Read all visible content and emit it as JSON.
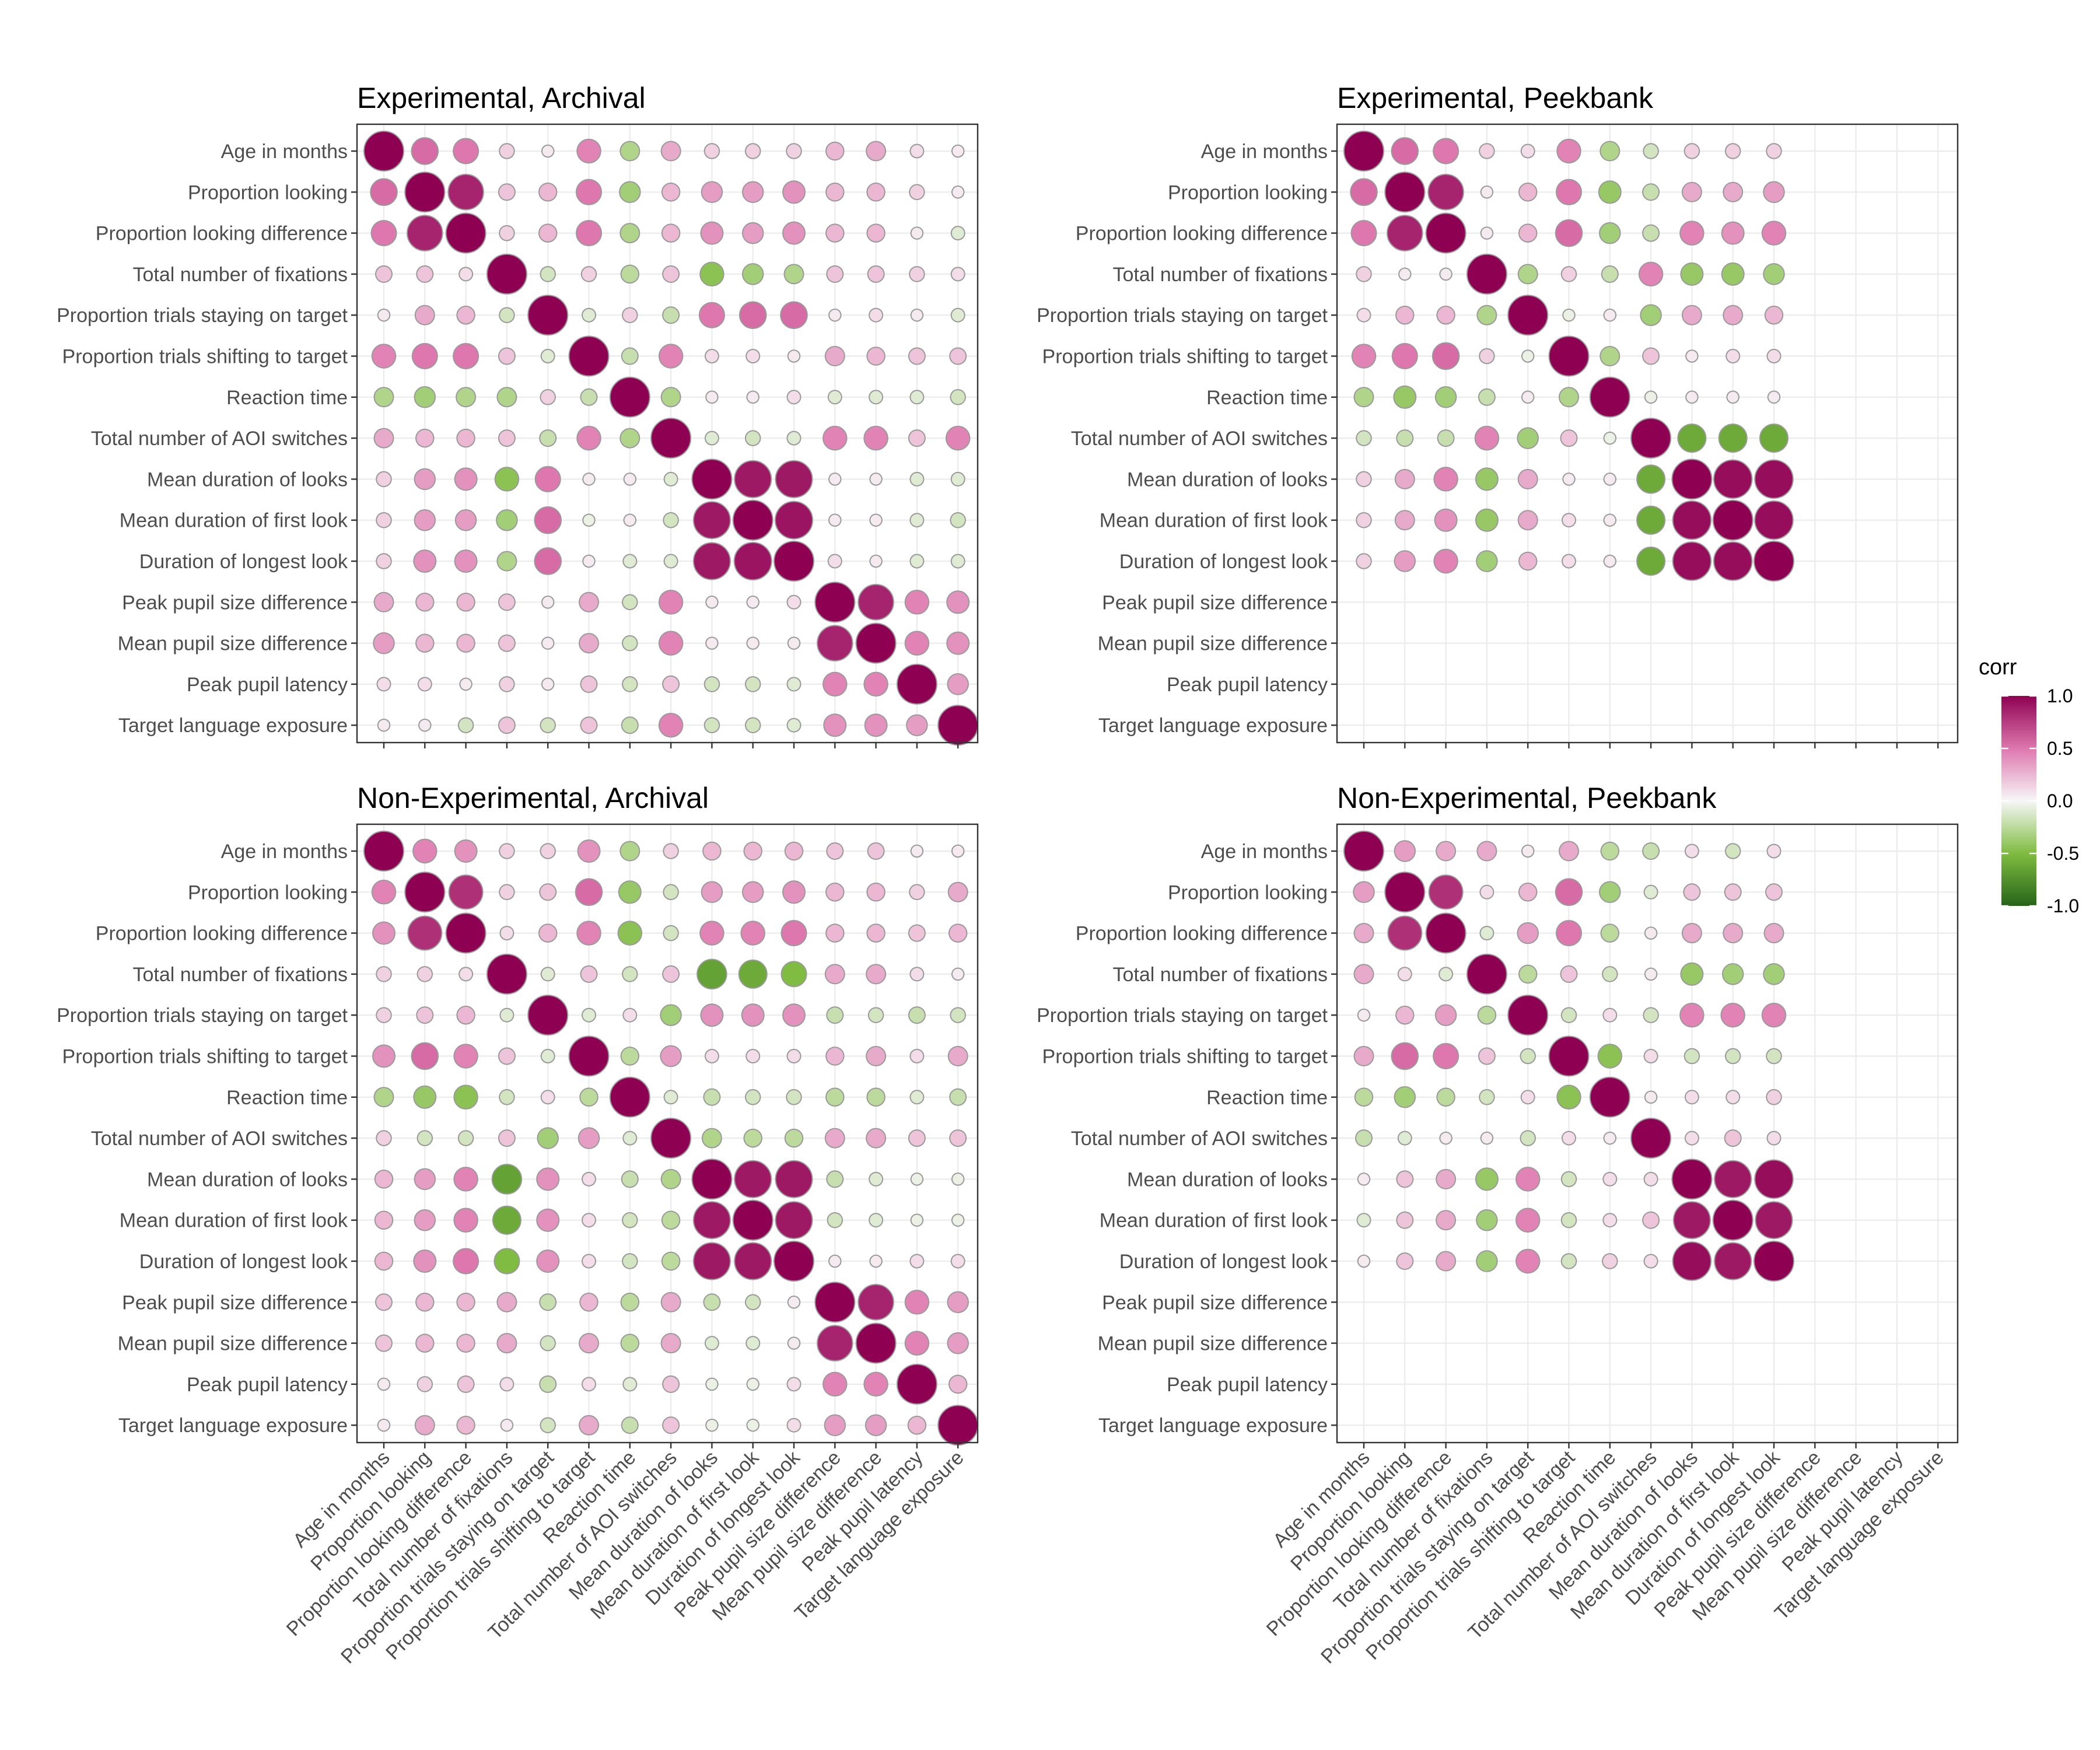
{
  "chart_data": {
    "type": "heatmap",
    "variables": [
      "Age in months",
      "Proportion looking",
      "Proportion looking difference",
      "Total number of fixations",
      "Proportion trials staying on target",
      "Proportion trials shifting to target",
      "Reaction time",
      "Total number of AOI switches",
      "Mean duration of looks",
      "Mean duration of first look",
      "Duration of longest look",
      "Peak pupil size difference",
      "Mean pupil size difference",
      "Peak pupil latency",
      "Target language exposure"
    ],
    "legend": {
      "title": "corr",
      "ticks": [
        "1.0",
        "0.5",
        "0.0",
        "-0.5",
        "-1.0"
      ],
      "tick_values": [
        1.0,
        0.5,
        0.0,
        -0.5,
        -1.0
      ],
      "colors": {
        "high": "#8e0152",
        "mid": "#f7f7f7",
        "low": "#276419",
        "mid_high": "#de77ae",
        "mid_low": "#7fbc41"
      },
      "placement": "right"
    },
    "panels": [
      {
        "title": "Experimental, Archival",
        "matrix": [
          [
            1.0,
            0.55,
            0.5,
            0.15,
            0.05,
            0.45,
            -0.3,
            0.3,
            0.15,
            0.15,
            0.15,
            0.25,
            0.3,
            0.1,
            0.05
          ],
          [
            0.55,
            1.0,
            0.85,
            0.2,
            0.25,
            0.5,
            -0.35,
            0.25,
            0.35,
            0.35,
            0.4,
            0.25,
            0.25,
            0.15,
            0.05
          ],
          [
            0.5,
            0.85,
            1.0,
            0.15,
            0.25,
            0.5,
            -0.3,
            0.25,
            0.4,
            0.35,
            0.4,
            0.25,
            0.25,
            0.05,
            -0.1
          ],
          [
            0.2,
            0.2,
            0.1,
            1.0,
            -0.15,
            0.15,
            -0.25,
            0.2,
            -0.45,
            -0.35,
            -0.3,
            0.2,
            0.2,
            0.15,
            0.1
          ],
          [
            0.05,
            0.3,
            0.25,
            -0.15,
            1.0,
            -0.1,
            0.15,
            -0.2,
            0.5,
            0.55,
            0.55,
            0.05,
            0.1,
            0.05,
            -0.1
          ],
          [
            0.45,
            0.5,
            0.5,
            0.2,
            -0.1,
            1.0,
            -0.2,
            0.45,
            0.1,
            0.1,
            0.05,
            0.3,
            0.25,
            0.2,
            0.2
          ],
          [
            -0.3,
            -0.35,
            -0.3,
            -0.3,
            0.15,
            -0.2,
            1.0,
            -0.3,
            0.05,
            0.05,
            0.1,
            -0.1,
            -0.1,
            -0.1,
            -0.15
          ],
          [
            0.3,
            0.25,
            0.25,
            0.2,
            -0.2,
            0.45,
            -0.3,
            1.0,
            -0.1,
            -0.15,
            -0.1,
            0.45,
            0.45,
            0.2,
            0.45
          ],
          [
            0.15,
            0.35,
            0.4,
            -0.45,
            0.5,
            0.05,
            0.05,
            -0.1,
            1.0,
            0.9,
            0.9,
            0.05,
            0.05,
            -0.1,
            -0.1
          ],
          [
            0.15,
            0.35,
            0.35,
            -0.35,
            0.55,
            -0.05,
            0.05,
            -0.15,
            0.9,
            1.0,
            0.92,
            0.05,
            0.05,
            -0.1,
            -0.15
          ],
          [
            0.15,
            0.4,
            0.4,
            -0.3,
            0.55,
            0.05,
            -0.1,
            -0.1,
            0.9,
            0.92,
            1.0,
            0.1,
            0.05,
            -0.1,
            -0.1
          ],
          [
            0.3,
            0.25,
            0.25,
            0.2,
            0.05,
            0.3,
            -0.15,
            0.45,
            0.05,
            0.05,
            0.1,
            1.0,
            0.85,
            0.45,
            0.4
          ],
          [
            0.35,
            0.25,
            0.25,
            0.2,
            0.05,
            0.3,
            -0.15,
            0.45,
            0.05,
            0.05,
            0.05,
            0.85,
            1.0,
            0.45,
            0.4
          ],
          [
            0.1,
            0.1,
            0.05,
            0.15,
            0.05,
            0.2,
            -0.15,
            0.2,
            -0.15,
            -0.15,
            -0.1,
            0.45,
            0.45,
            1.0,
            0.35
          ],
          [
            0.05,
            0.05,
            -0.15,
            0.2,
            -0.15,
            0.2,
            -0.2,
            0.45,
            -0.15,
            -0.15,
            -0.1,
            0.4,
            0.4,
            0.35,
            1.0
          ]
        ]
      },
      {
        "title": "Experimental, Peekbank",
        "matrix": [
          [
            1.0,
            0.55,
            0.5,
            0.15,
            0.1,
            0.45,
            -0.3,
            -0.15,
            0.15,
            0.15,
            0.15,
            null,
            null,
            null,
            null
          ],
          [
            0.55,
            1.0,
            0.85,
            0.05,
            0.25,
            0.5,
            -0.4,
            -0.2,
            0.3,
            0.3,
            0.35,
            null,
            null,
            null,
            null
          ],
          [
            0.5,
            0.85,
            1.0,
            0.05,
            0.25,
            0.55,
            -0.35,
            -0.2,
            0.45,
            0.4,
            0.45,
            null,
            null,
            null,
            null
          ],
          [
            0.15,
            0.05,
            0.05,
            1.0,
            -0.3,
            0.15,
            -0.2,
            0.45,
            -0.4,
            -0.4,
            -0.35,
            null,
            null,
            null,
            null
          ],
          [
            0.1,
            0.25,
            0.25,
            -0.3,
            1.0,
            -0.05,
            0.05,
            -0.35,
            0.3,
            0.3,
            0.25,
            null,
            null,
            null,
            null
          ],
          [
            0.45,
            0.5,
            0.55,
            0.15,
            -0.05,
            1.0,
            -0.3,
            0.2,
            0.05,
            0.1,
            0.1,
            null,
            null,
            null,
            null
          ],
          [
            -0.3,
            -0.4,
            -0.35,
            -0.2,
            0.05,
            -0.3,
            1.0,
            -0.05,
            0.05,
            0.05,
            0.05,
            null,
            null,
            null,
            null
          ],
          [
            -0.15,
            -0.2,
            -0.2,
            0.45,
            -0.35,
            0.2,
            -0.05,
            1.0,
            -0.6,
            -0.6,
            -0.6,
            null,
            null,
            null,
            null
          ],
          [
            0.15,
            0.3,
            0.45,
            -0.4,
            0.3,
            0.05,
            0.05,
            -0.6,
            1.0,
            0.95,
            0.95,
            null,
            null,
            null,
            null
          ],
          [
            0.15,
            0.3,
            0.4,
            -0.4,
            0.3,
            0.1,
            0.05,
            -0.6,
            0.95,
            1.0,
            0.95,
            null,
            null,
            null,
            null
          ],
          [
            0.15,
            0.35,
            0.45,
            -0.35,
            0.25,
            0.1,
            0.05,
            -0.6,
            0.95,
            0.95,
            1.0,
            null,
            null,
            null,
            null
          ],
          [
            null,
            null,
            null,
            null,
            null,
            null,
            null,
            null,
            null,
            null,
            null,
            null,
            null,
            null,
            null
          ],
          [
            null,
            null,
            null,
            null,
            null,
            null,
            null,
            null,
            null,
            null,
            null,
            null,
            null,
            null,
            null
          ],
          [
            null,
            null,
            null,
            null,
            null,
            null,
            null,
            null,
            null,
            null,
            null,
            null,
            null,
            null,
            null
          ],
          [
            null,
            null,
            null,
            null,
            null,
            null,
            null,
            null,
            null,
            null,
            null,
            null,
            null,
            null,
            null
          ]
        ]
      },
      {
        "title": "Non-Experimental, Archival",
        "matrix": [
          [
            1.0,
            0.45,
            0.4,
            0.15,
            0.15,
            0.4,
            -0.3,
            0.15,
            0.25,
            0.25,
            0.25,
            0.2,
            0.2,
            0.05,
            0.05
          ],
          [
            0.45,
            1.0,
            0.8,
            0.15,
            0.2,
            0.55,
            -0.4,
            -0.15,
            0.35,
            0.35,
            0.4,
            0.25,
            0.25,
            0.15,
            0.3
          ],
          [
            0.4,
            0.8,
            1.0,
            0.1,
            0.25,
            0.45,
            -0.45,
            -0.15,
            0.45,
            0.45,
            0.5,
            0.25,
            0.25,
            0.2,
            0.25
          ],
          [
            0.15,
            0.15,
            0.1,
            1.0,
            -0.1,
            0.2,
            -0.15,
            0.2,
            -0.65,
            -0.6,
            -0.5,
            0.3,
            0.3,
            0.1,
            0.05
          ],
          [
            0.15,
            0.2,
            0.25,
            -0.1,
            1.0,
            -0.1,
            0.1,
            -0.35,
            0.4,
            0.4,
            0.4,
            -0.2,
            -0.15,
            -0.2,
            -0.15
          ],
          [
            0.4,
            0.55,
            0.45,
            0.2,
            -0.1,
            1.0,
            -0.25,
            0.35,
            0.1,
            0.1,
            0.1,
            0.25,
            0.3,
            0.1,
            0.3
          ],
          [
            -0.3,
            -0.4,
            -0.45,
            -0.15,
            0.1,
            -0.25,
            1.0,
            -0.1,
            -0.2,
            -0.15,
            -0.15,
            -0.25,
            -0.25,
            -0.1,
            -0.2
          ],
          [
            0.15,
            -0.15,
            -0.15,
            0.2,
            -0.35,
            0.35,
            -0.1,
            1.0,
            -0.3,
            -0.25,
            -0.25,
            0.3,
            0.3,
            0.2,
            0.2
          ],
          [
            0.25,
            0.35,
            0.45,
            -0.65,
            0.4,
            0.1,
            -0.2,
            -0.3,
            1.0,
            0.9,
            0.9,
            -0.2,
            -0.1,
            -0.05,
            -0.05
          ],
          [
            0.25,
            0.35,
            0.45,
            -0.6,
            0.4,
            0.1,
            -0.15,
            -0.25,
            0.9,
            1.0,
            0.9,
            -0.15,
            -0.1,
            -0.05,
            -0.05
          ],
          [
            0.25,
            0.4,
            0.5,
            -0.5,
            0.4,
            0.1,
            -0.15,
            -0.25,
            0.9,
            0.9,
            1.0,
            0.05,
            0.05,
            0.1,
            0.1
          ],
          [
            0.2,
            0.25,
            0.25,
            0.3,
            -0.2,
            0.25,
            -0.25,
            0.3,
            -0.2,
            -0.15,
            0.05,
            1.0,
            0.85,
            0.45,
            0.35
          ],
          [
            0.2,
            0.25,
            0.25,
            0.3,
            -0.15,
            0.3,
            -0.25,
            0.3,
            -0.1,
            -0.1,
            0.05,
            0.85,
            1.0,
            0.45,
            0.35
          ],
          [
            0.05,
            0.15,
            0.2,
            0.1,
            -0.2,
            0.1,
            -0.1,
            0.2,
            -0.05,
            -0.05,
            0.1,
            0.45,
            0.45,
            1.0,
            0.25
          ],
          [
            0.05,
            0.3,
            0.25,
            0.05,
            -0.15,
            0.3,
            -0.2,
            0.2,
            -0.05,
            -0.05,
            0.1,
            0.35,
            0.35,
            0.25,
            1.0
          ]
        ]
      },
      {
        "title": "Non-Experimental, Peekbank",
        "matrix": [
          [
            1.0,
            0.35,
            0.3,
            0.3,
            0.05,
            0.3,
            -0.25,
            -0.2,
            0.1,
            -0.15,
            0.1,
            null,
            null,
            null,
            null
          ],
          [
            0.35,
            1.0,
            0.8,
            0.1,
            0.25,
            0.55,
            -0.35,
            -0.1,
            0.2,
            0.2,
            0.2,
            null,
            null,
            null,
            null
          ],
          [
            0.3,
            0.8,
            1.0,
            -0.1,
            0.35,
            0.5,
            -0.25,
            0.05,
            0.3,
            0.3,
            0.3,
            null,
            null,
            null,
            null
          ],
          [
            0.3,
            0.1,
            -0.1,
            1.0,
            -0.25,
            0.2,
            -0.15,
            0.05,
            -0.4,
            -0.35,
            -0.35,
            null,
            null,
            null,
            null
          ],
          [
            0.05,
            0.25,
            0.35,
            -0.25,
            1.0,
            -0.15,
            0.1,
            -0.15,
            0.45,
            0.45,
            0.45,
            null,
            null,
            null,
            null
          ],
          [
            0.3,
            0.55,
            0.5,
            0.2,
            -0.15,
            1.0,
            -0.45,
            0.1,
            -0.15,
            -0.15,
            -0.15,
            null,
            null,
            null,
            null
          ],
          [
            -0.25,
            -0.35,
            -0.25,
            -0.15,
            0.1,
            -0.45,
            1.0,
            0.05,
            0.1,
            0.1,
            0.15,
            null,
            null,
            null,
            null
          ],
          [
            -0.2,
            -0.1,
            0.05,
            0.05,
            -0.15,
            0.1,
            0.05,
            1.0,
            0.1,
            0.2,
            0.1,
            null,
            null,
            null,
            null
          ],
          [
            0.05,
            0.2,
            0.3,
            -0.4,
            0.45,
            -0.15,
            0.1,
            0.1,
            1.0,
            0.9,
            0.95,
            null,
            null,
            null,
            null
          ],
          [
            -0.1,
            0.2,
            0.3,
            -0.35,
            0.45,
            -0.15,
            0.1,
            0.2,
            0.9,
            1.0,
            0.9,
            null,
            null,
            null,
            null
          ],
          [
            0.05,
            0.2,
            0.3,
            -0.35,
            0.45,
            -0.15,
            0.15,
            0.1,
            0.95,
            0.9,
            1.0,
            null,
            null,
            null,
            null
          ],
          [
            null,
            null,
            null,
            null,
            null,
            null,
            null,
            null,
            null,
            null,
            null,
            null,
            null,
            null,
            null
          ],
          [
            null,
            null,
            null,
            null,
            null,
            null,
            null,
            null,
            null,
            null,
            null,
            null,
            null,
            null,
            null
          ],
          [
            null,
            null,
            null,
            null,
            null,
            null,
            null,
            null,
            null,
            null,
            null,
            null,
            null,
            null,
            null
          ],
          [
            null,
            null,
            null,
            null,
            null,
            null,
            null,
            null,
            null,
            null,
            null,
            null,
            null,
            null,
            null
          ]
        ]
      }
    ]
  }
}
